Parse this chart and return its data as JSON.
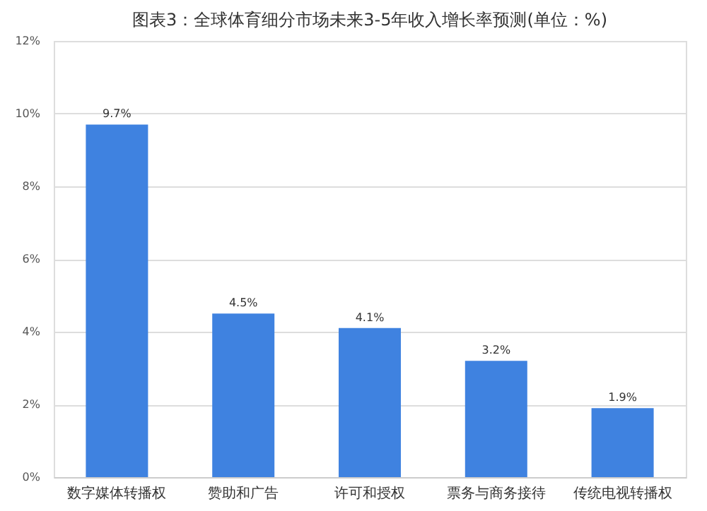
{
  "chart_data": {
    "type": "bar",
    "title": "图表3：全球体育细分市场未来3-5年收入增长率预测(单位：%)",
    "categories": [
      "数字媒体转播权",
      "赞助和广告",
      "许可和授权",
      "票务与商务接待",
      "传统电视转播权"
    ],
    "values": [
      9.7,
      4.5,
      4.1,
      3.2,
      1.9
    ],
    "value_labels": [
      "9.7%",
      "4.5%",
      "4.1%",
      "3.2%",
      "1.9%"
    ],
    "color": "#3f82e0",
    "ylim": [
      0,
      12
    ],
    "yticks": [
      {
        "value": 0,
        "label": "0%"
      },
      {
        "value": 2,
        "label": "2%"
      },
      {
        "value": 4,
        "label": "4%"
      },
      {
        "value": 6,
        "label": "6%"
      },
      {
        "value": 8,
        "label": "8%"
      },
      {
        "value": 10,
        "label": "10%"
      },
      {
        "value": 12,
        "label": "12%"
      }
    ],
    "grid": "y"
  }
}
